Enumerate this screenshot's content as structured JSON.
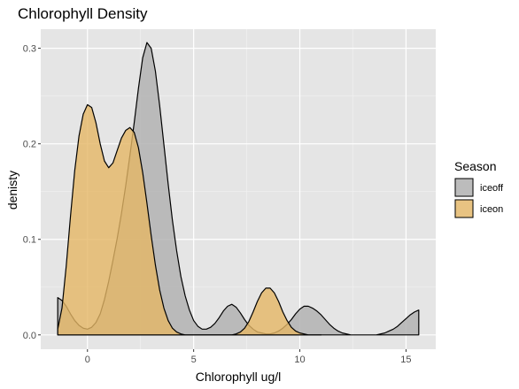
{
  "chart_data": {
    "type": "area",
    "subtype": "density",
    "title": "Chlorophyll Density",
    "xlabel": "Chlorophyll ug/l",
    "ylabel": "denisty",
    "xlim": [
      -2.2,
      16.4
    ],
    "ylim": [
      -0.015,
      0.32
    ],
    "x_ticks": [
      0,
      5,
      10,
      15
    ],
    "y_ticks": [
      0.0,
      0.1,
      0.2,
      0.3
    ],
    "x_tick_labels": [
      "0",
      "5",
      "10",
      "15"
    ],
    "y_tick_labels": [
      "0.0",
      "0.1",
      "0.2",
      "0.3"
    ],
    "grid": true,
    "panel_background": "#e5e5e5",
    "legend": {
      "title": "Season",
      "position": "right",
      "entries": [
        {
          "label": "iceoff",
          "color": "#b3b3b3"
        },
        {
          "label": "iceon",
          "color": "#e5b665"
        }
      ]
    },
    "series": [
      {
        "name": "iceoff",
        "color": "#b3b3b3",
        "opacity": 0.85,
        "x": [
          -1.4,
          -1.2,
          -1.0,
          -0.8,
          -0.6,
          -0.4,
          -0.2,
          0.0,
          0.2,
          0.4,
          0.6,
          0.8,
          1.0,
          1.2,
          1.4,
          1.6,
          1.8,
          2.0,
          2.2,
          2.4,
          2.6,
          2.8,
          3.0,
          3.2,
          3.4,
          3.6,
          3.8,
          4.0,
          4.2,
          4.4,
          4.6,
          4.8,
          5.0,
          5.2,
          5.4,
          5.6,
          5.8,
          6.0,
          6.2,
          6.4,
          6.6,
          6.8,
          7.0,
          7.2,
          7.4,
          7.6,
          7.8,
          8.0,
          8.2,
          8.4,
          8.6,
          8.8,
          9.0,
          9.2,
          9.4,
          9.6,
          9.8,
          10.0,
          10.2,
          10.4,
          10.6,
          10.8,
          11.0,
          11.2,
          11.4,
          11.6,
          11.8,
          12.0,
          12.2,
          12.4,
          12.6,
          12.8,
          13.0,
          13.2,
          13.4,
          13.6,
          13.8,
          14.0,
          14.2,
          14.4,
          14.6,
          14.8,
          15.0,
          15.2,
          15.4,
          15.6
        ],
        "y": [
          0.039,
          0.036,
          0.03,
          0.022,
          0.015,
          0.01,
          0.007,
          0.006,
          0.008,
          0.013,
          0.022,
          0.037,
          0.056,
          0.078,
          0.101,
          0.127,
          0.156,
          0.188,
          0.222,
          0.258,
          0.29,
          0.306,
          0.3,
          0.276,
          0.24,
          0.199,
          0.158,
          0.12,
          0.088,
          0.061,
          0.041,
          0.026,
          0.015,
          0.009,
          0.006,
          0.006,
          0.008,
          0.012,
          0.018,
          0.025,
          0.03,
          0.032,
          0.029,
          0.023,
          0.016,
          0.01,
          0.006,
          0.003,
          0.002,
          0.001,
          0.001,
          0.002,
          0.004,
          0.007,
          0.011,
          0.016,
          0.022,
          0.027,
          0.03,
          0.03,
          0.028,
          0.025,
          0.021,
          0.016,
          0.011,
          0.007,
          0.004,
          0.002,
          0.001,
          0.0,
          0.0,
          0.0,
          0.0,
          0.0,
          0.0,
          0.0,
          0.001,
          0.002,
          0.004,
          0.006,
          0.009,
          0.013,
          0.017,
          0.021,
          0.024,
          0.026
        ]
      },
      {
        "name": "iceon",
        "color": "#e5b665",
        "opacity": 0.8,
        "x": [
          -1.4,
          -1.2,
          -1.0,
          -0.8,
          -0.6,
          -0.4,
          -0.2,
          0.0,
          0.2,
          0.4,
          0.6,
          0.8,
          1.0,
          1.2,
          1.4,
          1.6,
          1.8,
          2.0,
          2.2,
          2.4,
          2.6,
          2.8,
          3.0,
          3.2,
          3.4,
          3.6,
          3.8,
          4.0,
          4.2,
          4.4,
          4.6,
          4.8,
          5.0,
          5.2,
          5.4,
          5.6,
          5.8,
          6.0,
          6.2,
          6.4,
          6.6,
          6.8,
          7.0,
          7.2,
          7.4,
          7.6,
          7.8,
          8.0,
          8.2,
          8.4,
          8.6,
          8.8,
          9.0,
          9.2,
          9.4,
          9.6,
          9.8,
          10.0,
          10.2,
          10.4,
          10.6,
          10.8,
          11.0
        ],
        "y": [
          0.006,
          0.028,
          0.072,
          0.124,
          0.172,
          0.208,
          0.231,
          0.241,
          0.238,
          0.222,
          0.2,
          0.182,
          0.175,
          0.18,
          0.193,
          0.206,
          0.214,
          0.217,
          0.212,
          0.196,
          0.17,
          0.138,
          0.104,
          0.073,
          0.047,
          0.028,
          0.015,
          0.007,
          0.003,
          0.001,
          0.0,
          0.0,
          0.0,
          0.0,
          0.0,
          0.0,
          0.0,
          0.0,
          0.0,
          0.0,
          0.0,
          0.0,
          0.001,
          0.003,
          0.007,
          0.014,
          0.024,
          0.035,
          0.044,
          0.049,
          0.049,
          0.044,
          0.035,
          0.024,
          0.015,
          0.008,
          0.004,
          0.002,
          0.001,
          0.0,
          0.0,
          0.0,
          0.0
        ]
      }
    ]
  }
}
